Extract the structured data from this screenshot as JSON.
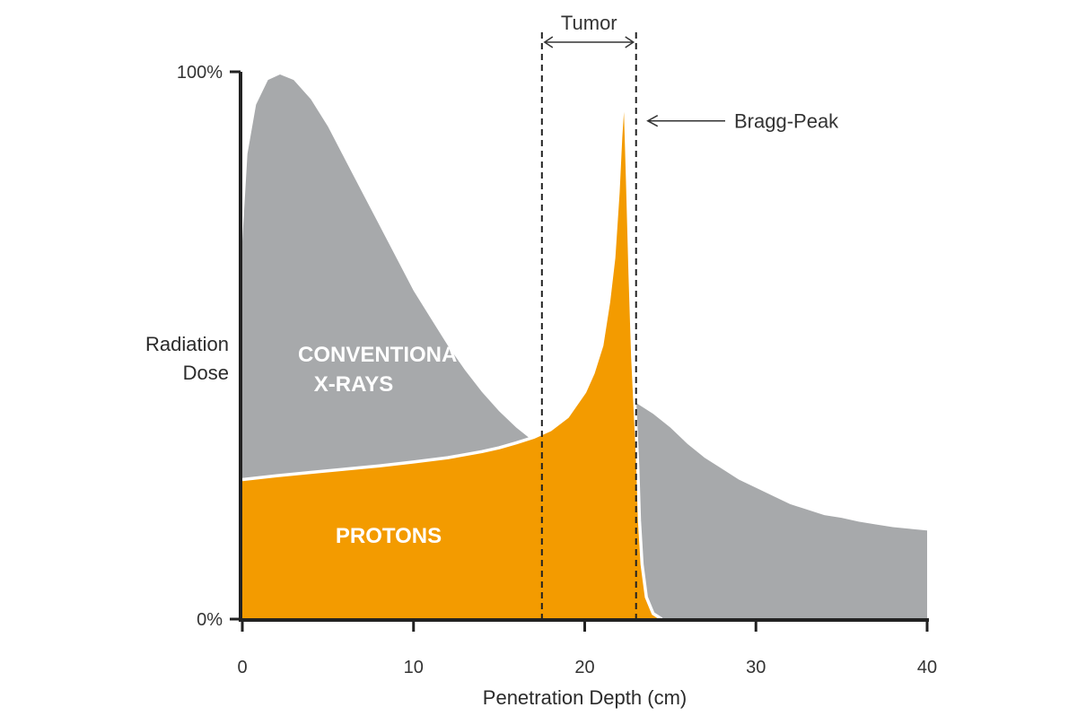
{
  "chart_data": {
    "type": "area",
    "xlabel": "Penetration Depth (cm)",
    "ylabel": [
      "Radiation",
      "Dose"
    ],
    "xlim": [
      0,
      40
    ],
    "ylim": [
      0,
      100
    ],
    "x_ticks": [
      0,
      10,
      20,
      30,
      40
    ],
    "x_tick_labels": [
      "0",
      "10",
      "20",
      "30",
      "40"
    ],
    "y_tick_labels": [
      {
        "value": 100,
        "label": "100%"
      },
      {
        "value": 0,
        "label": "0%"
      }
    ],
    "grid": false,
    "series": [
      {
        "key": "xrays",
        "name_lines": [
          "CONVENTIONAL",
          "X-RAYS"
        ],
        "color": "#a7a9ab",
        "points": [
          [
            0,
            69
          ],
          [
            0.3,
            85
          ],
          [
            0.8,
            94
          ],
          [
            1.5,
            98.5
          ],
          [
            2.2,
            99.5
          ],
          [
            3,
            98.5
          ],
          [
            4,
            95
          ],
          [
            5,
            90
          ],
          [
            6,
            84
          ],
          [
            7,
            78
          ],
          [
            8,
            72
          ],
          [
            9,
            66
          ],
          [
            10,
            60
          ],
          [
            11,
            55
          ],
          [
            12,
            50
          ],
          [
            13,
            45.5
          ],
          [
            14,
            41.5
          ],
          [
            15,
            38
          ],
          [
            16,
            35
          ],
          [
            17,
            32.5
          ],
          [
            18,
            30
          ],
          [
            19,
            28
          ],
          [
            20,
            26
          ],
          [
            21,
            24.5
          ],
          [
            22,
            23.5
          ],
          [
            22.8,
            38
          ],
          [
            23,
            39.5
          ],
          [
            24,
            37.5
          ],
          [
            25,
            35
          ],
          [
            26,
            32
          ],
          [
            27,
            29.5
          ],
          [
            28,
            27.5
          ],
          [
            29,
            25.5
          ],
          [
            30,
            24
          ],
          [
            31,
            22.5
          ],
          [
            32,
            21
          ],
          [
            33,
            20
          ],
          [
            34,
            19
          ],
          [
            35,
            18.5
          ],
          [
            36,
            17.8
          ],
          [
            37,
            17.3
          ],
          [
            38,
            16.8
          ],
          [
            39,
            16.5
          ],
          [
            40,
            16.2
          ]
        ]
      },
      {
        "key": "protons",
        "name_lines": [
          "PROTONS"
        ],
        "color": "#f39b00",
        "points": [
          [
            0,
            25.5
          ],
          [
            2,
            26.2
          ],
          [
            4,
            26.8
          ],
          [
            6,
            27.4
          ],
          [
            8,
            28
          ],
          [
            10,
            28.7
          ],
          [
            12,
            29.5
          ],
          [
            14,
            30.6
          ],
          [
            15,
            31.3
          ],
          [
            16,
            32.2
          ],
          [
            17,
            33.2
          ],
          [
            18,
            34.6
          ],
          [
            19,
            37
          ],
          [
            20,
            41.5
          ],
          [
            20.5,
            45
          ],
          [
            21,
            50
          ],
          [
            21.4,
            58
          ],
          [
            21.7,
            66
          ],
          [
            21.95,
            78
          ],
          [
            22.1,
            88
          ],
          [
            22.25,
            95
          ],
          [
            22.38,
            93
          ],
          [
            22.5,
            80
          ],
          [
            22.65,
            63
          ],
          [
            22.8,
            48
          ],
          [
            22.95,
            38
          ],
          [
            23.1,
            28
          ],
          [
            23.2,
            18
          ],
          [
            23.35,
            10
          ],
          [
            23.6,
            4
          ],
          [
            24,
            1
          ],
          [
            24.5,
            0
          ]
        ]
      }
    ],
    "annotations": {
      "tumor": {
        "label": "Tumor",
        "x_range": [
          17.5,
          23
        ]
      },
      "bragg_peak": {
        "label": "Bragg-Peak",
        "points_to": [
          23,
          93
        ]
      }
    }
  }
}
